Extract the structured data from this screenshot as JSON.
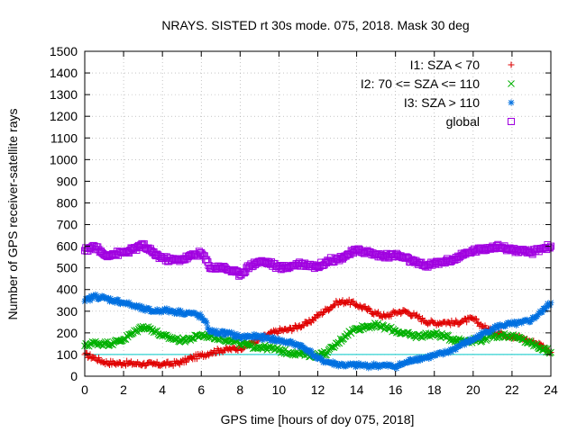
{
  "chart_data": {
    "type": "scatter",
    "title": "NRAYS. SISTED rt 30s mode. 075, 2018. Mask 30 deg",
    "xlabel": "GPS time [hours of doy 075, 2018]",
    "ylabel": "Number of GPS receiver-satellite rays",
    "xlim": [
      0,
      24
    ],
    "ylim": [
      0,
      1500
    ],
    "x_ticks": [
      "0",
      "2",
      "4",
      "6",
      "8",
      "10",
      "12",
      "14",
      "16",
      "18",
      "20",
      "22",
      "24"
    ],
    "y_ticks": [
      "0",
      "100",
      "200",
      "300",
      "400",
      "500",
      "600",
      "700",
      "800",
      "900",
      "1000",
      "1100",
      "1200",
      "1300",
      "1400",
      "1500"
    ],
    "grid": true,
    "legend_position": "top-right",
    "reference_line": {
      "y": 100,
      "color": "#00c8c8"
    },
    "series": [
      {
        "name": "I1: SZA < 70",
        "marker": "+",
        "color": "#e00000",
        "x": [
          0.0,
          0.5,
          1.0,
          1.5,
          2.0,
          2.5,
          3.0,
          3.5,
          4.0,
          4.5,
          5.0,
          5.5,
          6.0,
          6.5,
          7.0,
          7.5,
          8.0,
          8.5,
          9.0,
          9.5,
          10.0,
          10.5,
          11.0,
          11.5,
          12.0,
          12.5,
          13.0,
          13.5,
          14.0,
          14.5,
          15.0,
          15.5,
          16.0,
          16.5,
          17.0,
          17.5,
          18.0,
          18.5,
          19.0,
          19.5,
          20.0,
          20.5,
          21.0,
          21.5,
          22.0,
          22.5,
          23.0,
          23.5,
          24.0
        ],
        "y": [
          100,
          85,
          65,
          60,
          60,
          58,
          57,
          55,
          55,
          58,
          65,
          85,
          95,
          110,
          120,
          125,
          130,
          150,
          170,
          195,
          210,
          215,
          230,
          245,
          280,
          310,
          340,
          345,
          330,
          310,
          290,
          275,
          295,
          300,
          280,
          255,
          245,
          250,
          245,
          255,
          265,
          230,
          205,
          195,
          185,
          175,
          160,
          145,
          110
        ]
      },
      {
        "name": "I2: 70 <= SZA <= 110",
        "marker": "x",
        "color": "#00b000",
        "x": [
          0.0,
          0.5,
          1.0,
          1.5,
          2.0,
          2.5,
          3.0,
          3.5,
          4.0,
          4.5,
          5.0,
          5.5,
          6.0,
          6.5,
          7.0,
          7.5,
          8.0,
          8.5,
          9.0,
          9.5,
          10.0,
          10.5,
          11.0,
          11.5,
          12.0,
          12.5,
          13.0,
          13.5,
          14.0,
          14.5,
          15.0,
          15.5,
          16.0,
          16.5,
          17.0,
          17.5,
          18.0,
          18.5,
          19.0,
          19.5,
          20.0,
          20.5,
          21.0,
          21.5,
          22.0,
          22.5,
          23.0,
          23.5,
          24.0
        ],
        "y": [
          140,
          155,
          150,
          155,
          170,
          200,
          230,
          215,
          185,
          175,
          165,
          175,
          190,
          185,
          175,
          165,
          150,
          140,
          135,
          130,
          120,
          110,
          105,
          100,
          95,
          110,
          150,
          195,
          220,
          230,
          235,
          225,
          210,
          195,
          185,
          190,
          195,
          185,
          170,
          165,
          165,
          170,
          185,
          190,
          185,
          170,
          150,
          130,
          110
        ]
      },
      {
        "name": "I3: SZA > 110",
        "marker": "*",
        "color": "#0070e0",
        "x": [
          0.0,
          0.5,
          1.0,
          1.5,
          2.0,
          2.5,
          3.0,
          3.5,
          4.0,
          4.5,
          5.0,
          5.5,
          6.0,
          6.5,
          7.0,
          7.5,
          8.0,
          8.5,
          9.0,
          9.5,
          10.0,
          10.5,
          11.0,
          11.5,
          12.0,
          12.5,
          13.0,
          13.5,
          14.0,
          14.5,
          15.0,
          15.5,
          16.0,
          16.5,
          17.0,
          17.5,
          18.0,
          18.5,
          19.0,
          19.5,
          20.0,
          20.5,
          21.0,
          21.5,
          22.0,
          22.5,
          23.0,
          23.5,
          24.0
        ],
        "y": [
          345,
          370,
          360,
          350,
          340,
          325,
          310,
          300,
          305,
          300,
          295,
          290,
          275,
          205,
          200,
          195,
          180,
          185,
          180,
          175,
          165,
          155,
          145,
          120,
          80,
          65,
          55,
          50,
          50,
          48,
          50,
          48,
          45,
          60,
          80,
          85,
          95,
          105,
          125,
          150,
          170,
          195,
          220,
          235,
          240,
          245,
          260,
          295,
          340
        ]
      },
      {
        "name": "global",
        "marker": "square",
        "color": "#a000e0",
        "x": [
          0.0,
          0.5,
          1.0,
          1.5,
          2.0,
          2.5,
          3.0,
          3.5,
          4.0,
          4.5,
          5.0,
          5.5,
          6.0,
          6.5,
          7.0,
          7.5,
          8.0,
          8.5,
          9.0,
          9.5,
          10.0,
          10.5,
          11.0,
          11.5,
          12.0,
          12.5,
          13.0,
          13.5,
          14.0,
          14.5,
          15.0,
          15.5,
          16.0,
          16.5,
          17.0,
          17.5,
          18.0,
          18.5,
          19.0,
          19.5,
          20.0,
          20.5,
          21.0,
          21.5,
          22.0,
          22.5,
          23.0,
          23.5,
          24.0
        ],
        "y": [
          580,
          600,
          560,
          565,
          570,
          585,
          605,
          570,
          545,
          535,
          540,
          555,
          570,
          500,
          505,
          490,
          470,
          510,
          530,
          525,
          500,
          505,
          520,
          515,
          505,
          535,
          540,
          560,
          580,
          575,
          560,
          555,
          560,
          545,
          525,
          510,
          520,
          530,
          540,
          560,
          580,
          585,
          600,
          595,
          585,
          575,
          570,
          590,
          600
        ]
      }
    ]
  }
}
